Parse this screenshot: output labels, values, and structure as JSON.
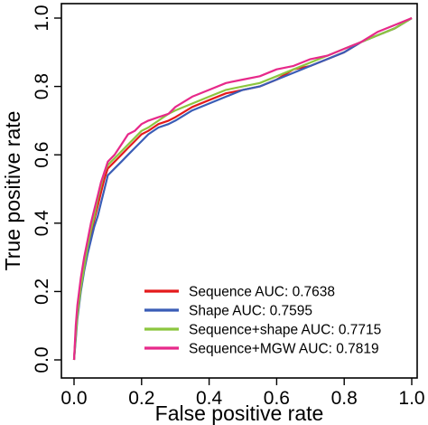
{
  "chart_data": {
    "type": "line",
    "xlabel": "False positive rate",
    "ylabel": "True positive rate",
    "xlim": [
      0,
      1
    ],
    "ylim": [
      0,
      1
    ],
    "x_ticks": [
      "0.0",
      "0.2",
      "0.4",
      "0.6",
      "0.8",
      "1.0"
    ],
    "y_ticks": [
      "0.0",
      "0.2",
      "0.4",
      "0.6",
      "0.8",
      "1.0"
    ],
    "legend_position": "bottom-right",
    "grid": false,
    "series": [
      {
        "name": "Sequence AUC: 0.7638",
        "color": "#e41a1c",
        "x": [
          0,
          0.005,
          0.01,
          0.015,
          0.02,
          0.03,
          0.04,
          0.05,
          0.06,
          0.07,
          0.08,
          0.09,
          0.1,
          0.12,
          0.14,
          0.16,
          0.18,
          0.2,
          0.22,
          0.25,
          0.28,
          0.3,
          0.35,
          0.4,
          0.45,
          0.5,
          0.55,
          0.6,
          0.65,
          0.7,
          0.75,
          0.8,
          0.85,
          0.9,
          0.95,
          1.0
        ],
        "y": [
          0,
          0.08,
          0.14,
          0.18,
          0.22,
          0.28,
          0.33,
          0.37,
          0.41,
          0.45,
          0.49,
          0.53,
          0.56,
          0.58,
          0.6,
          0.62,
          0.64,
          0.66,
          0.67,
          0.69,
          0.7,
          0.71,
          0.74,
          0.76,
          0.78,
          0.79,
          0.8,
          0.82,
          0.85,
          0.86,
          0.88,
          0.9,
          0.93,
          0.95,
          0.97,
          1.0
        ]
      },
      {
        "name": "Shape AUC: 0.7595",
        "color": "#3a5db6",
        "x": [
          0,
          0.005,
          0.01,
          0.015,
          0.02,
          0.03,
          0.04,
          0.05,
          0.06,
          0.07,
          0.08,
          0.09,
          0.1,
          0.12,
          0.14,
          0.16,
          0.18,
          0.2,
          0.22,
          0.25,
          0.28,
          0.3,
          0.35,
          0.4,
          0.45,
          0.5,
          0.55,
          0.6,
          0.65,
          0.7,
          0.75,
          0.8,
          0.85,
          0.9,
          0.95,
          1.0
        ],
        "y": [
          0,
          0.06,
          0.12,
          0.16,
          0.2,
          0.26,
          0.31,
          0.35,
          0.39,
          0.42,
          0.46,
          0.5,
          0.54,
          0.56,
          0.58,
          0.6,
          0.62,
          0.64,
          0.66,
          0.68,
          0.69,
          0.7,
          0.73,
          0.75,
          0.77,
          0.79,
          0.8,
          0.82,
          0.84,
          0.86,
          0.88,
          0.9,
          0.93,
          0.95,
          0.97,
          1.0
        ]
      },
      {
        "name": "Sequence+shape AUC: 0.7715",
        "color": "#8cc63f",
        "x": [
          0,
          0.005,
          0.01,
          0.015,
          0.02,
          0.03,
          0.04,
          0.05,
          0.06,
          0.07,
          0.08,
          0.09,
          0.1,
          0.12,
          0.14,
          0.16,
          0.18,
          0.2,
          0.22,
          0.25,
          0.28,
          0.3,
          0.35,
          0.4,
          0.45,
          0.5,
          0.55,
          0.6,
          0.65,
          0.7,
          0.75,
          0.8,
          0.85,
          0.9,
          0.95,
          1.0
        ],
        "y": [
          0,
          0.07,
          0.13,
          0.17,
          0.21,
          0.27,
          0.33,
          0.38,
          0.42,
          0.47,
          0.51,
          0.55,
          0.57,
          0.59,
          0.61,
          0.63,
          0.65,
          0.67,
          0.68,
          0.7,
          0.72,
          0.73,
          0.75,
          0.77,
          0.79,
          0.8,
          0.81,
          0.83,
          0.85,
          0.87,
          0.89,
          0.91,
          0.93,
          0.95,
          0.97,
          1.0
        ]
      },
      {
        "name": "Sequence+MGW AUC: 0.7819",
        "color": "#e7298a",
        "x": [
          0,
          0.005,
          0.01,
          0.015,
          0.02,
          0.03,
          0.04,
          0.05,
          0.06,
          0.07,
          0.08,
          0.09,
          0.1,
          0.12,
          0.14,
          0.16,
          0.18,
          0.2,
          0.22,
          0.25,
          0.28,
          0.3,
          0.35,
          0.4,
          0.45,
          0.5,
          0.55,
          0.6,
          0.65,
          0.7,
          0.75,
          0.8,
          0.85,
          0.9,
          0.95,
          1.0
        ],
        "y": [
          0,
          0.1,
          0.16,
          0.2,
          0.24,
          0.3,
          0.35,
          0.4,
          0.44,
          0.48,
          0.52,
          0.55,
          0.58,
          0.6,
          0.63,
          0.66,
          0.67,
          0.69,
          0.7,
          0.71,
          0.72,
          0.74,
          0.77,
          0.79,
          0.81,
          0.82,
          0.83,
          0.85,
          0.86,
          0.88,
          0.89,
          0.91,
          0.93,
          0.96,
          0.98,
          1.0
        ]
      }
    ]
  }
}
